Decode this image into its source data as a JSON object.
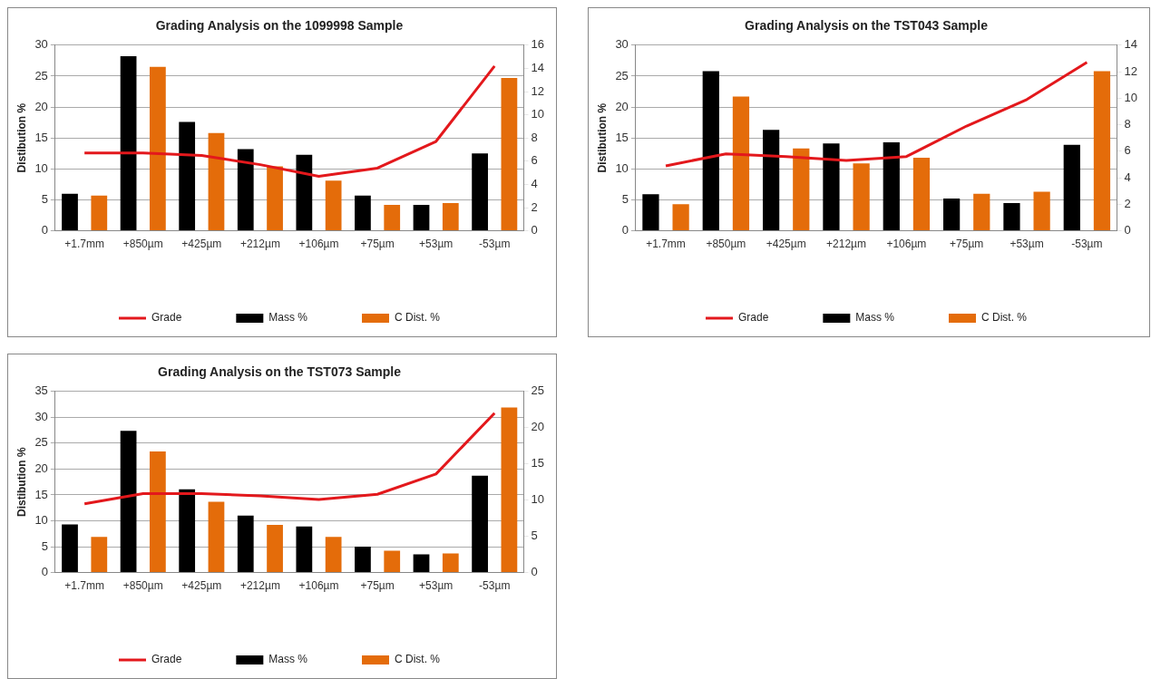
{
  "chart_data": [
    {
      "type": "bar",
      "title": "Grading Analysis on the 1099998 Sample",
      "ylabel": "Distibution %",
      "categories": [
        "+1.7mm",
        "+850µm",
        "+425µm",
        "+212µm",
        "+106µm",
        "+75µm",
        "+53µm",
        "-53µm"
      ],
      "series": [
        {
          "name": "Mass %",
          "color": "#000000",
          "values": [
            6.0,
            28.2,
            17.6,
            13.2,
            12.3,
            5.7,
            4.2,
            12.5
          ]
        },
        {
          "name": "C Dist. %",
          "color": "#e46c0a",
          "values": [
            5.7,
            26.5,
            15.8,
            10.4,
            8.1,
            4.2,
            4.5,
            24.7
          ]
        },
        {
          "name": "Grade",
          "type": "line",
          "axis": "y2",
          "color": "#e3181c",
          "values": [
            6.7,
            6.7,
            6.5,
            5.7,
            4.7,
            5.4,
            7.7,
            14.2
          ]
        }
      ],
      "ylim": [
        0,
        30
      ],
      "yticks": [
        0,
        5,
        10,
        15,
        20,
        25,
        30
      ],
      "y2lim": [
        0,
        16
      ],
      "y2ticks": [
        0,
        2,
        4,
        6,
        8,
        10,
        12,
        14,
        16
      ],
      "grid": "y",
      "legend": "bottom",
      "marker": "none"
    },
    {
      "type": "bar",
      "title": "Grading Analysis on the TST043 Sample",
      "ylabel": "Distibution %",
      "categories": [
        "+1.7mm",
        "+850µm",
        "+425µm",
        "+212µm",
        "+106µm",
        "+75µm",
        "+53µm",
        "-53µm"
      ],
      "series": [
        {
          "name": "Mass %",
          "color": "#000000",
          "values": [
            5.9,
            25.8,
            16.3,
            14.1,
            14.3,
            5.2,
            4.5,
            13.9
          ]
        },
        {
          "name": "C Dist. %",
          "color": "#e46c0a",
          "values": [
            4.3,
            21.7,
            13.3,
            10.9,
            11.8,
            6.0,
            6.3,
            25.8
          ]
        },
        {
          "name": "Grade",
          "type": "line",
          "axis": "y2",
          "color": "#e3181c",
          "values": [
            4.9,
            5.8,
            5.6,
            5.3,
            5.6,
            7.9,
            9.9,
            12.7
          ]
        }
      ],
      "ylim": [
        0,
        30
      ],
      "yticks": [
        0,
        5,
        10,
        15,
        20,
        25,
        30
      ],
      "y2lim": [
        0,
        14
      ],
      "y2ticks": [
        0,
        2,
        4,
        6,
        8,
        10,
        12,
        14
      ],
      "grid": "y",
      "legend": "bottom",
      "marker": "none"
    },
    {
      "type": "bar",
      "title": "Grading Analysis on the TST073 Sample",
      "ylabel": "Distibution %",
      "categories": [
        "+1.7mm",
        "+850µm",
        "+425µm",
        "+212µm",
        "+106µm",
        "+75µm",
        "+53µm",
        "-53µm"
      ],
      "series": [
        {
          "name": "Mass %",
          "color": "#000000",
          "values": [
            9.3,
            27.4,
            16.1,
            11.0,
            8.9,
            5.0,
            3.5,
            18.7
          ]
        },
        {
          "name": "C Dist. %",
          "color": "#e46c0a",
          "values": [
            6.9,
            23.4,
            13.7,
            9.2,
            6.9,
            4.2,
            3.7,
            31.9
          ]
        },
        {
          "name": "Grade",
          "type": "line",
          "axis": "y2",
          "color": "#e3181c",
          "values": [
            9.5,
            10.9,
            10.9,
            10.6,
            10.1,
            10.8,
            13.6,
            22.0
          ]
        }
      ],
      "ylim": [
        0,
        35
      ],
      "yticks": [
        0,
        5,
        10,
        15,
        20,
        25,
        30,
        35
      ],
      "y2lim": [
        0,
        25
      ],
      "y2ticks": [
        0,
        5,
        10,
        15,
        20,
        25
      ],
      "grid": "y",
      "legend": "bottom",
      "marker": "none"
    }
  ]
}
